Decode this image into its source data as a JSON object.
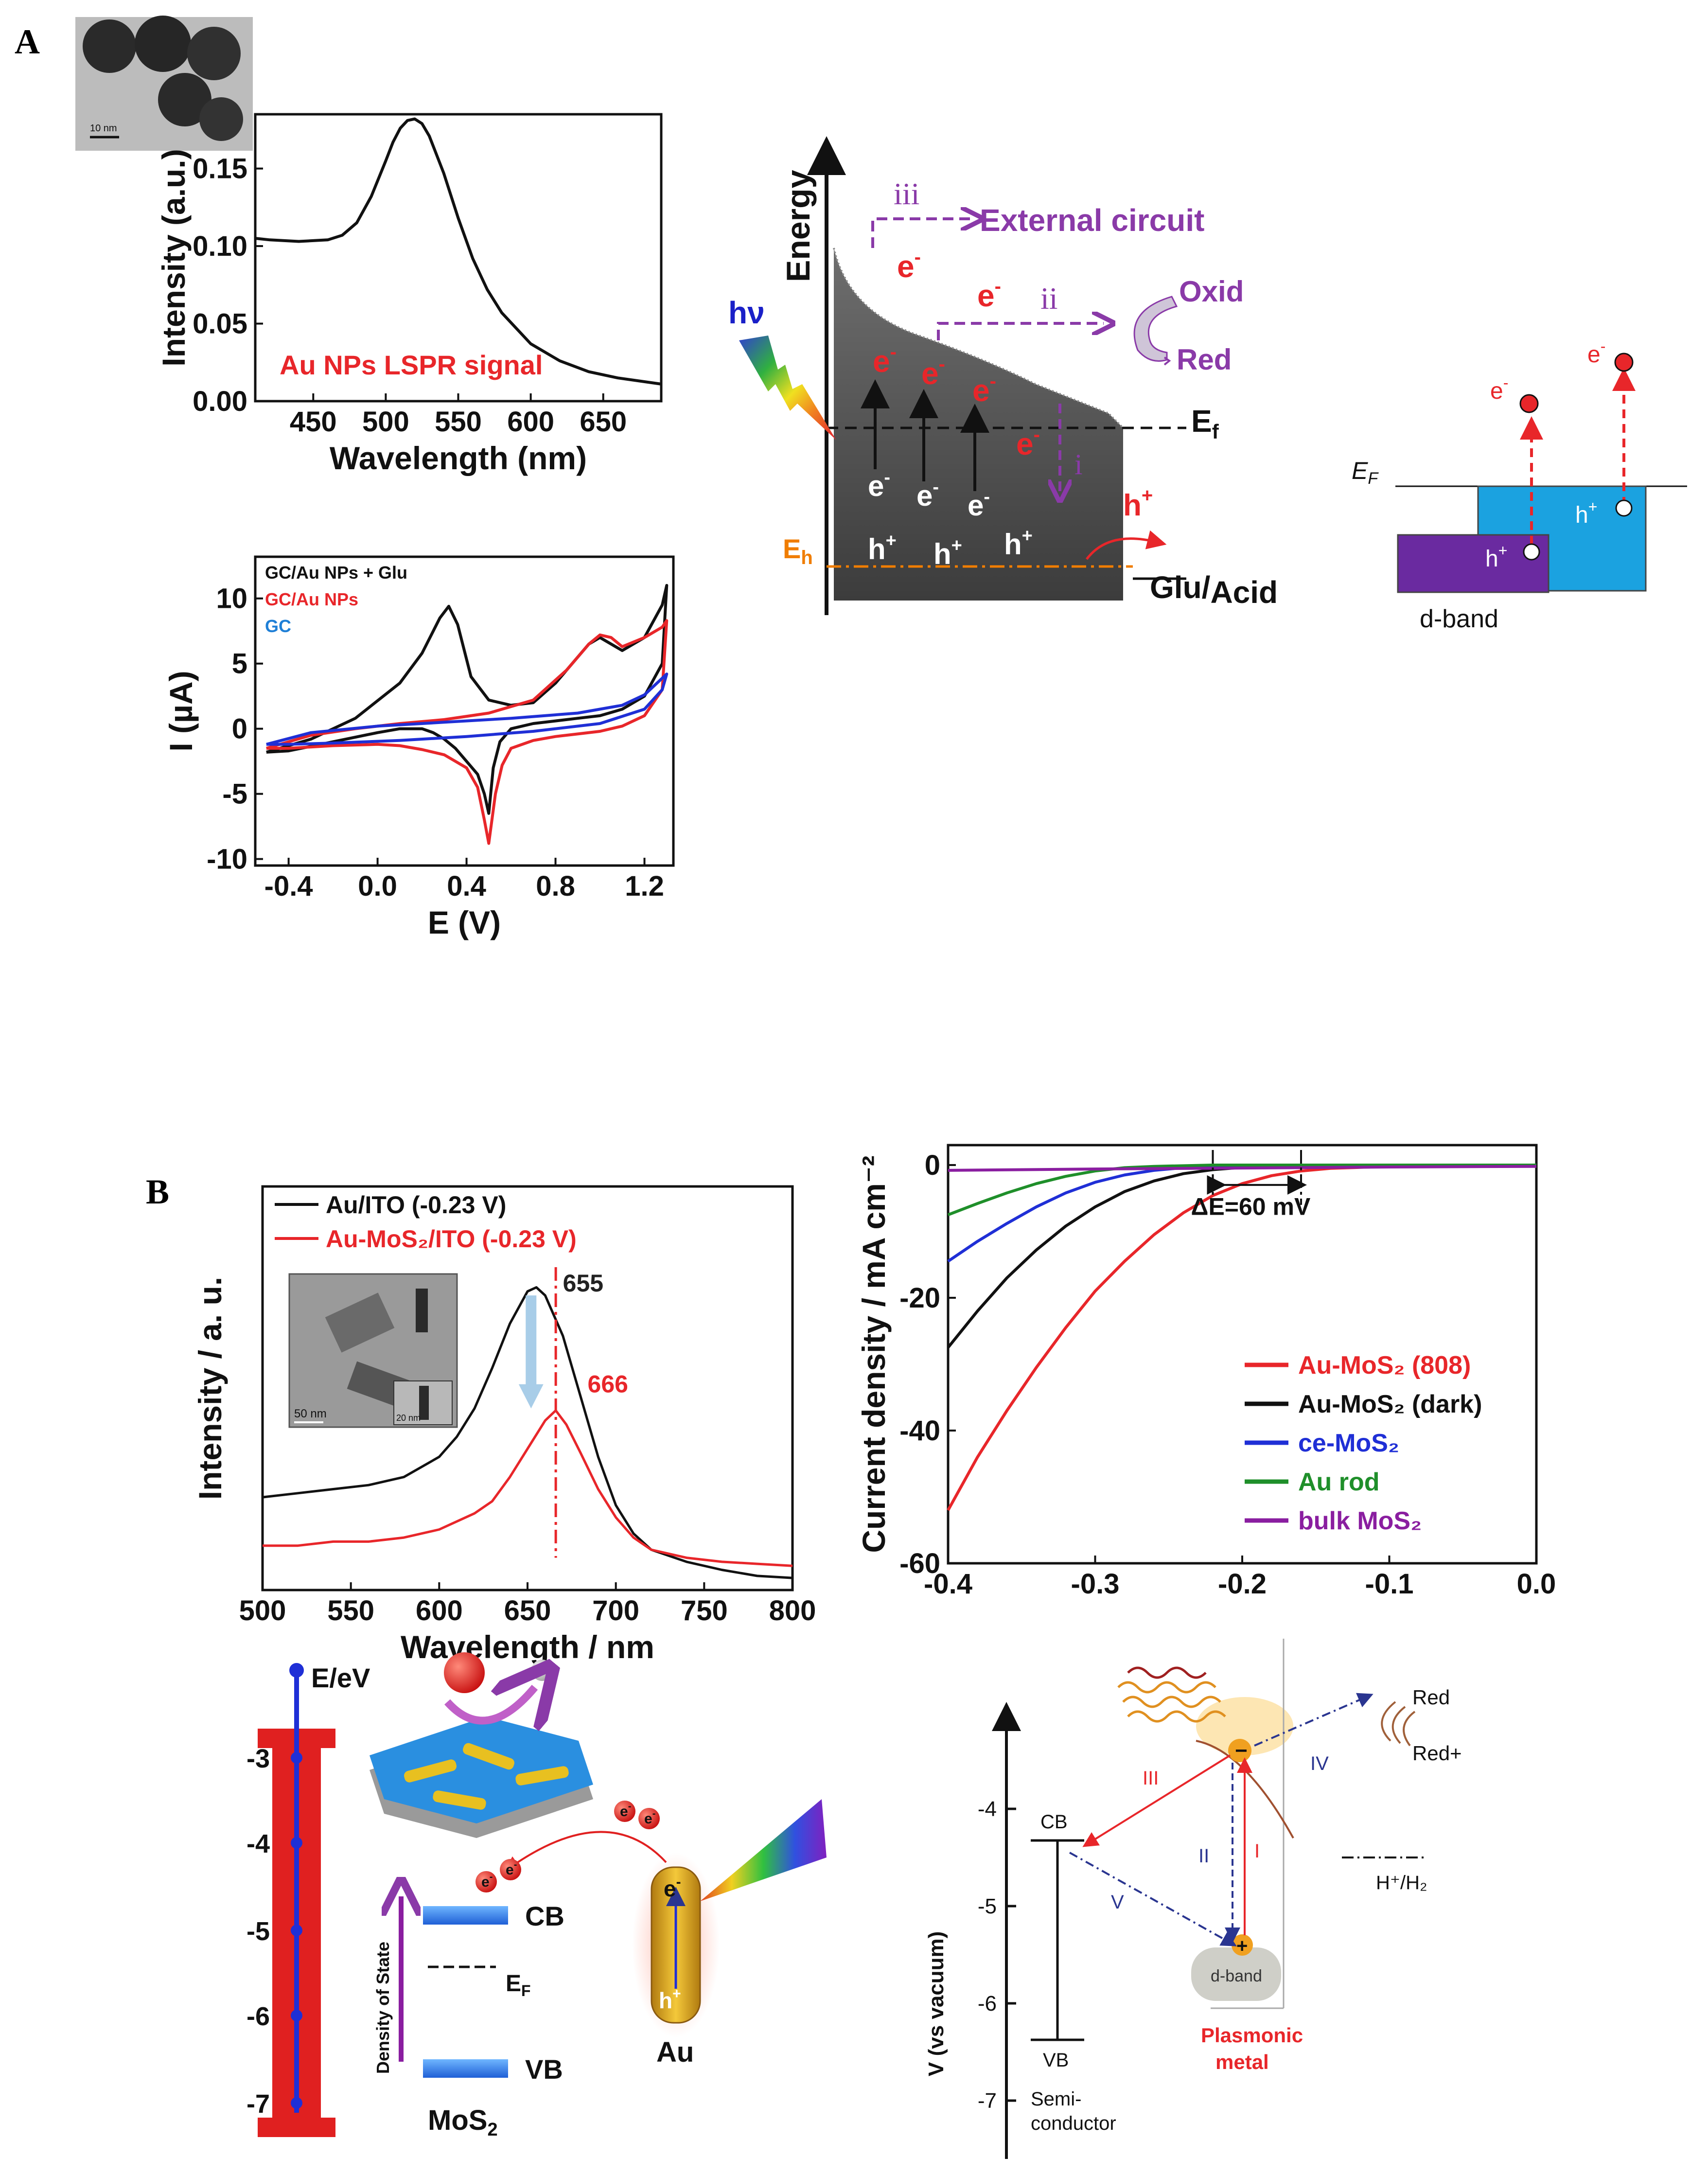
{
  "panels": {
    "a": "A",
    "b": "B"
  },
  "tem_scale_a": "10 nm",
  "tem_scale_b1": "50 nm",
  "tem_scale_b2": "20 nm",
  "colors": {
    "black": "#111111",
    "red": "#e8262a",
    "blue": "#1f2fd6",
    "green": "#1f8f2a",
    "purple": "#8a1ea0",
    "orange": "#f07d00",
    "cyan": "#1ba2e0",
    "violet": "#6a2aa0"
  },
  "schematic_a": {
    "energy": "Energy",
    "hv": "hν",
    "ef": "E",
    "ef_sub": "f",
    "eh": "E",
    "eh_sub": "h",
    "iii": "iii",
    "ii": "ii",
    "i": "i",
    "external": "External circuit",
    "oxid": "Oxid",
    "red": "Red",
    "glu": "Glu/",
    "acid": "Acid",
    "e": "e",
    "minus": "-",
    "h": "h",
    "plus": "+"
  },
  "dband_a": {
    "ef": "E",
    "ef_sub": "F",
    "e": "e",
    "minus": "-",
    "h": "h",
    "plus": "+",
    "dband": "d-band"
  },
  "schematic_b1": {
    "title": "E/eV",
    "ticks": [
      "-3",
      "-4",
      "-5",
      "-6",
      "-7"
    ],
    "cb": "CB",
    "vb": "VB",
    "ef": "E",
    "ef_sub": "F",
    "dos": "Density of State",
    "mos2": "MoS",
    "mos2_sub": "2",
    "au": "Au",
    "e": "e",
    "minus": "-",
    "h": "h",
    "plus": "+"
  },
  "schematic_b2": {
    "ylabel": "V (vs vacuum)",
    "ticks": [
      "-4",
      "-5",
      "-6",
      "-7"
    ],
    "cb": "CB",
    "vb": "VB",
    "semi1": "Semi-",
    "semi2": "conductor",
    "plas1": "Plasmonic",
    "plas2": "metal",
    "dband": "d-band",
    "red": "Red",
    "redplus": "Red+",
    "hh2": "H⁺/H₂",
    "minus": "−",
    "plus": "+",
    "roman": [
      "I",
      "II",
      "III",
      "IV",
      "V"
    ]
  },
  "chart_data": [
    {
      "id": "lspr",
      "type": "line",
      "title": "",
      "annotation": "Au NPs LSPR signal",
      "xlabel": "Wavelength (nm)",
      "ylabel": "Intensity (a.u.)",
      "xlim": [
        410,
        690
      ],
      "ylim": [
        0.0,
        0.185
      ],
      "xticks": [
        450,
        500,
        550,
        600,
        650
      ],
      "yticks": [
        0.0,
        0.05,
        0.1,
        0.15
      ],
      "ytick_labels": [
        "0.00",
        "0.05",
        "0.10",
        "0.15"
      ],
      "series": [
        {
          "name": "Au NPs",
          "color": "#111111",
          "x": [
            410,
            420,
            440,
            460,
            470,
            480,
            490,
            500,
            505,
            510,
            515,
            520,
            525,
            530,
            540,
            550,
            560,
            570,
            580,
            600,
            620,
            640,
            660,
            690
          ],
          "y": [
            0.105,
            0.104,
            0.103,
            0.104,
            0.107,
            0.115,
            0.132,
            0.155,
            0.167,
            0.176,
            0.181,
            0.182,
            0.179,
            0.171,
            0.147,
            0.118,
            0.092,
            0.072,
            0.057,
            0.037,
            0.026,
            0.019,
            0.015,
            0.011
          ]
        }
      ]
    },
    {
      "id": "cv",
      "type": "line",
      "title": "",
      "xlabel": "E (V)",
      "ylabel": "I (µA)",
      "xlim": [
        -0.55,
        1.33
      ],
      "ylim": [
        -10.5,
        13.2
      ],
      "xticks": [
        -0.4,
        0.0,
        0.4,
        0.8,
        1.2
      ],
      "xtick_labels": [
        "-0.4",
        "0.0",
        "0.4",
        "0.8",
        "1.2"
      ],
      "yticks": [
        -10,
        -5,
        0,
        5,
        10
      ],
      "ytick_labels": [
        "-10",
        "-5",
        "0",
        "5",
        "10"
      ],
      "legend": [
        "GC/Au NPs + Glu",
        "GC/Au NPs",
        "GC"
      ],
      "series": [
        {
          "name": "GC/Au NPs + Glu",
          "color": "#111111",
          "x": [
            -0.5,
            -0.3,
            -0.1,
            0.1,
            0.2,
            0.28,
            0.32,
            0.36,
            0.42,
            0.5,
            0.6,
            0.7,
            0.8,
            0.9,
            0.95,
            1.0,
            1.05,
            1.1,
            1.2,
            1.28,
            1.3,
            1.28,
            1.2,
            1.1,
            1.0,
            0.9,
            0.8,
            0.7,
            0.6,
            0.55,
            0.52,
            0.5,
            0.48,
            0.45,
            0.4,
            0.35,
            0.3,
            0.25,
            0.2,
            0.1,
            0.0,
            -0.2,
            -0.4,
            -0.5
          ],
          "y": [
            -1.8,
            -0.8,
            0.8,
            3.5,
            5.8,
            8.5,
            9.4,
            8.0,
            4.0,
            2.2,
            1.8,
            2.0,
            3.5,
            5.5,
            6.5,
            7.0,
            6.5,
            6.0,
            7.0,
            9.5,
            11.0,
            5.0,
            2.5,
            1.5,
            1.0,
            0.8,
            0.6,
            0.4,
            0.0,
            -1.0,
            -3.0,
            -6.5,
            -5.0,
            -3.5,
            -2.5,
            -1.5,
            -0.8,
            -0.3,
            0.0,
            0.0,
            -0.3,
            -1.0,
            -1.7,
            -1.8
          ]
        },
        {
          "name": "GC/Au NPs",
          "color": "#e8262a",
          "x": [
            -0.5,
            -0.3,
            -0.1,
            0.1,
            0.3,
            0.5,
            0.7,
            0.85,
            0.95,
            1.0,
            1.05,
            1.1,
            1.2,
            1.28,
            1.3,
            1.28,
            1.2,
            1.1,
            1.0,
            0.9,
            0.8,
            0.7,
            0.6,
            0.56,
            0.53,
            0.5,
            0.48,
            0.45,
            0.4,
            0.35,
            0.3,
            0.2,
            0.1,
            0.0,
            -0.2,
            -0.4,
            -0.5
          ],
          "y": [
            -1.5,
            -0.5,
            0.0,
            0.4,
            0.7,
            1.2,
            2.2,
            4.5,
            6.5,
            7.2,
            7.0,
            6.3,
            7.0,
            7.8,
            8.3,
            3.0,
            1.0,
            0.2,
            -0.2,
            -0.4,
            -0.6,
            -0.9,
            -1.5,
            -2.8,
            -5.0,
            -8.8,
            -7.0,
            -4.5,
            -3.0,
            -2.5,
            -2.0,
            -1.6,
            -1.3,
            -1.2,
            -1.3,
            -1.5,
            -1.5
          ]
        },
        {
          "name": "GC",
          "color": "#1f2fd6",
          "x": [
            -0.5,
            -0.3,
            0.0,
            0.3,
            0.6,
            0.9,
            1.1,
            1.2,
            1.3,
            1.28,
            1.2,
            1.0,
            0.7,
            0.4,
            0.1,
            -0.2,
            -0.4,
            -0.5
          ],
          "y": [
            -1.2,
            -0.3,
            0.2,
            0.5,
            0.8,
            1.2,
            1.8,
            2.6,
            4.2,
            3.0,
            1.5,
            0.4,
            -0.2,
            -0.6,
            -0.9,
            -1.1,
            -1.2,
            -1.2
          ]
        }
      ]
    },
    {
      "id": "spectra_b",
      "type": "line",
      "title": "",
      "xlabel": "Wavelength / nm",
      "ylabel": "Intensity / a. u.",
      "xlim": [
        500,
        800
      ],
      "ylim": [
        0.0,
        1.0
      ],
      "xticks": [
        500,
        550,
        600,
        650,
        700,
        750,
        800
      ],
      "legend": [
        "Au/ITO (-0.23 V)",
        "Au-MoS₂/ITO (-0.23 V)"
      ],
      "annotations": [
        "655",
        "666"
      ],
      "series": [
        {
          "name": "Au/ITO (-0.23 V)",
          "color": "#111111",
          "x": [
            500,
            520,
            540,
            560,
            580,
            600,
            610,
            620,
            630,
            640,
            650,
            655,
            660,
            670,
            680,
            690,
            700,
            710,
            720,
            740,
            760,
            780,
            800
          ],
          "y": [
            0.23,
            0.24,
            0.25,
            0.26,
            0.28,
            0.33,
            0.38,
            0.45,
            0.55,
            0.66,
            0.74,
            0.75,
            0.73,
            0.63,
            0.48,
            0.33,
            0.21,
            0.14,
            0.1,
            0.07,
            0.05,
            0.035,
            0.03
          ]
        },
        {
          "name": "Au-MoS₂/ITO (-0.23 V)",
          "color": "#e8262a",
          "x": [
            500,
            520,
            540,
            560,
            580,
            600,
            620,
            630,
            640,
            650,
            660,
            666,
            672,
            680,
            690,
            700,
            710,
            720,
            740,
            760,
            780,
            800
          ],
          "y": [
            0.11,
            0.11,
            0.12,
            0.12,
            0.13,
            0.15,
            0.19,
            0.22,
            0.28,
            0.35,
            0.42,
            0.445,
            0.41,
            0.34,
            0.25,
            0.18,
            0.13,
            0.1,
            0.08,
            0.07,
            0.065,
            0.06
          ]
        }
      ]
    },
    {
      "id": "lsv",
      "type": "line",
      "title": "",
      "xlabel": "",
      "ylabel": "Current density / mA cm⁻²",
      "xlim": [
        -0.4,
        0.0
      ],
      "ylim": [
        -60,
        3
      ],
      "xticks": [
        -0.4,
        -0.3,
        -0.2,
        -0.1,
        0.0
      ],
      "xtick_labels": [
        "-0.4",
        "-0.3",
        "-0.2",
        "-0.1",
        "0.0"
      ],
      "yticks": [
        -60,
        -40,
        -20,
        0
      ],
      "ytick_labels": [
        "-60",
        "-40",
        "-20",
        "0"
      ],
      "annotation": "ΔE=60 mV",
      "legend": [
        "Au-MoS₂ (808)",
        "Au-MoS₂ (dark)",
        "ce-MoS₂",
        "Au rod",
        "bulk MoS₂"
      ],
      "series": [
        {
          "name": "Au-MoS₂ (808)",
          "color": "#e8262a",
          "x": [
            -0.4,
            -0.38,
            -0.36,
            -0.34,
            -0.32,
            -0.3,
            -0.28,
            -0.26,
            -0.24,
            -0.22,
            -0.2,
            -0.18,
            -0.16,
            -0.14,
            -0.1,
            -0.05,
            0.0
          ],
          "y": [
            -52,
            -44,
            -37,
            -30.5,
            -24.5,
            -19,
            -14.5,
            -10.5,
            -7.2,
            -4.6,
            -2.8,
            -1.6,
            -0.9,
            -0.5,
            -0.2,
            -0.1,
            0.0
          ]
        },
        {
          "name": "Au-MoS₂ (dark)",
          "color": "#111111",
          "x": [
            -0.4,
            -0.38,
            -0.36,
            -0.34,
            -0.32,
            -0.3,
            -0.28,
            -0.26,
            -0.24,
            -0.22,
            -0.2,
            -0.16,
            -0.1,
            0.0
          ],
          "y": [
            -27.5,
            -22,
            -17,
            -12.8,
            -9.2,
            -6.3,
            -4.0,
            -2.4,
            -1.3,
            -0.7,
            -0.35,
            -0.1,
            0.0,
            0.0
          ]
        },
        {
          "name": "ce-MoS₂",
          "color": "#1f2fd6",
          "x": [
            -0.4,
            -0.38,
            -0.36,
            -0.34,
            -0.32,
            -0.3,
            -0.28,
            -0.26,
            -0.24,
            -0.2,
            -0.1,
            0.0
          ],
          "y": [
            -14.5,
            -11.5,
            -8.8,
            -6.3,
            -4.2,
            -2.6,
            -1.5,
            -0.8,
            -0.4,
            -0.1,
            0.0,
            0.0
          ]
        },
        {
          "name": "Au rod",
          "color": "#1f8f2a",
          "x": [
            -0.4,
            -0.38,
            -0.36,
            -0.34,
            -0.32,
            -0.3,
            -0.28,
            -0.26,
            -0.22,
            -0.1,
            0.0
          ],
          "y": [
            -7.5,
            -5.8,
            -4.2,
            -2.8,
            -1.7,
            -0.9,
            -0.4,
            -0.2,
            0.0,
            0.0,
            0.0
          ]
        },
        {
          "name": "bulk MoS₂",
          "color": "#8a1ea0",
          "x": [
            -0.4,
            -0.3,
            -0.2,
            -0.1,
            0.0
          ],
          "y": [
            -0.8,
            -0.6,
            -0.45,
            -0.3,
            -0.2
          ]
        }
      ]
    }
  ]
}
